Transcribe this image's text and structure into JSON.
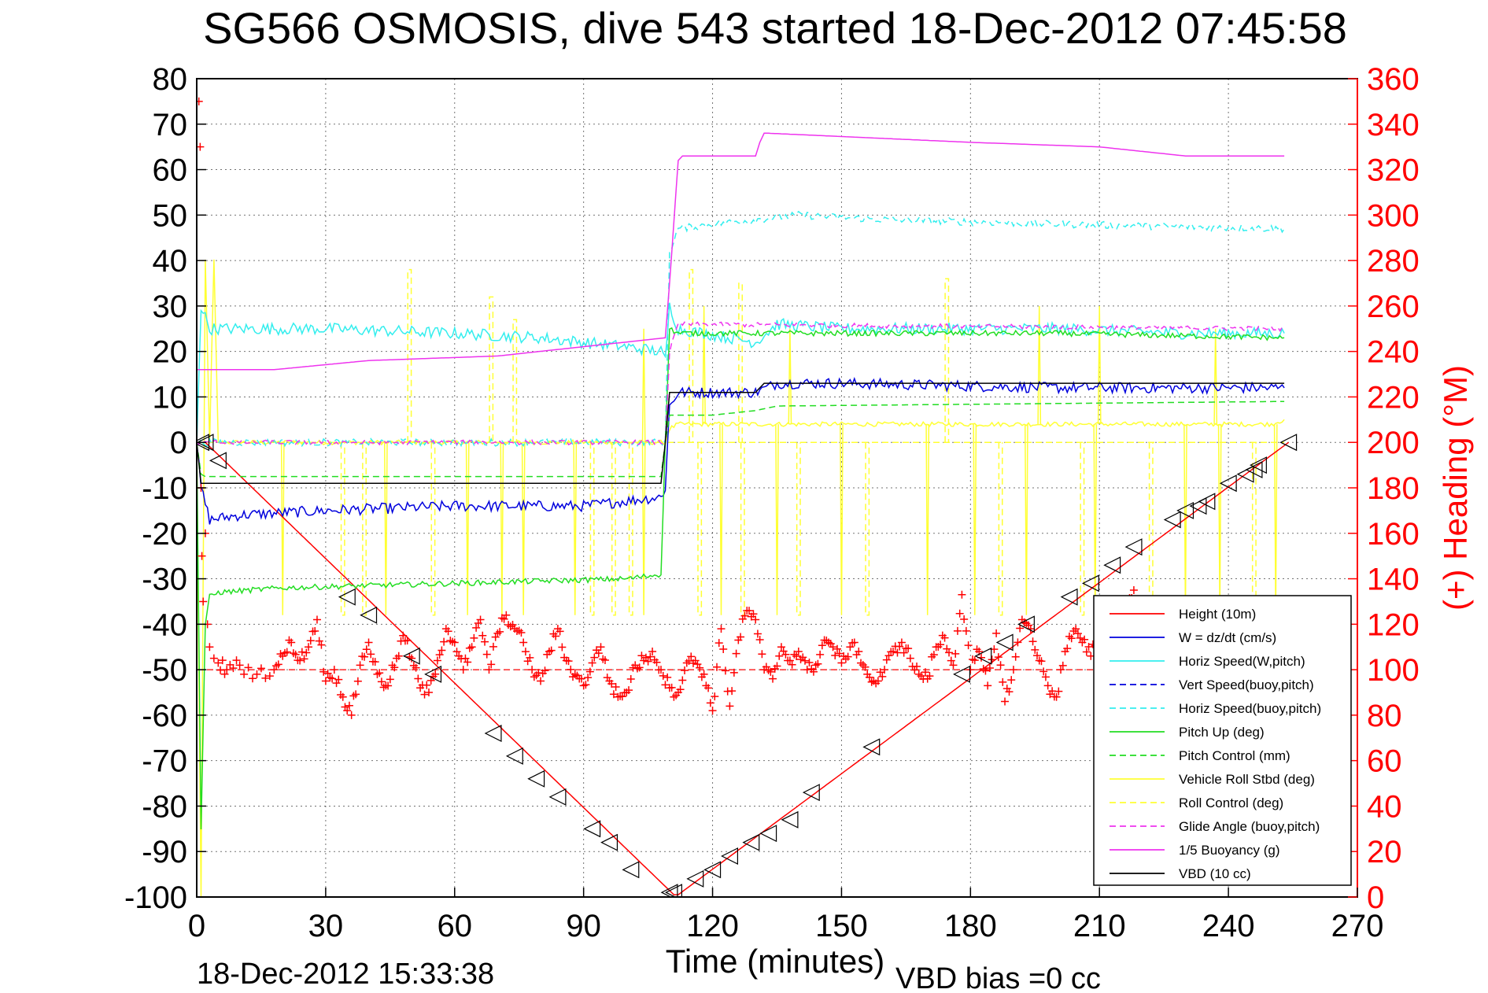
{
  "chart_data": {
    "type": "line",
    "title": "SG566 OSMOSIS, dive 543 started 18-Dec-2012 07:45:58",
    "xlabel": "Time (minutes)",
    "ylabel": "",
    "y2label": "(+) Heading (°M)",
    "footer_left": "18-Dec-2012 15:33:38",
    "footer_right": "VBD bias =0 cc",
    "xlim": [
      0,
      270
    ],
    "ylim": [
      -100,
      80
    ],
    "y2lim": [
      0,
      360
    ],
    "xticks": [
      0,
      30,
      60,
      90,
      120,
      150,
      180,
      210,
      240,
      270
    ],
    "yticks": [
      80,
      70,
      60,
      50,
      40,
      30,
      20,
      10,
      0,
      -10,
      -20,
      -30,
      -40,
      -50,
      -60,
      -70,
      -80,
      -90,
      -100
    ],
    "y2ticks": [
      360,
      340,
      320,
      300,
      280,
      260,
      240,
      220,
      200,
      180,
      160,
      140,
      120,
      100,
      80,
      60,
      40,
      20,
      0
    ],
    "grid": true,
    "legend_position": "bottom-right",
    "colors": {
      "axis": "#000000",
      "right_axis": "#ff0000",
      "grid": "#000000",
      "red": "#ff0000",
      "blue": "#0000dd",
      "cyan": "#33eeee",
      "green": "#22dd22",
      "yellow": "#ffff33",
      "magenta": "#ee33ee",
      "black": "#000000"
    },
    "legend": [
      {
        "label": "Height (10m)",
        "color": "#ff0000",
        "dash": false
      },
      {
        "label": "W = dz/dt (cm/s)",
        "color": "#0000dd",
        "dash": false
      },
      {
        "label": "Horiz Speed(W,pitch)",
        "color": "#33eeee",
        "dash": false
      },
      {
        "label": "Vert Speed(buoy,pitch)",
        "color": "#0000dd",
        "dash": true
      },
      {
        "label": "Horiz Speed(buoy,pitch)",
        "color": "#33eeee",
        "dash": true
      },
      {
        "label": "Pitch Up (deg)",
        "color": "#22dd22",
        "dash": false
      },
      {
        "label": "Pitch Control (mm)",
        "color": "#22dd22",
        "dash": true
      },
      {
        "label": "Vehicle Roll Stbd (deg)",
        "color": "#ffff33",
        "dash": false
      },
      {
        "label": "Roll Control (deg)",
        "color": "#ffff33",
        "dash": true
      },
      {
        "label": "Glide Angle (buoy,pitch)",
        "color": "#ee33ee",
        "dash": true
      },
      {
        "label": "1/5 Buoyancy (g)",
        "color": "#ee33ee",
        "dash": false
      },
      {
        "label": "VBD (10 cc)",
        "color": "#000000",
        "dash": false
      }
    ],
    "series": [
      {
        "name": "Height (10m)",
        "color": "#ff0000",
        "style": "solid",
        "x": [
          0,
          2,
          111,
          112,
          254
        ],
        "y": [
          0,
          0,
          -99.5,
          -99.5,
          0
        ]
      },
      {
        "name": "W = dz/dt (cm/s)",
        "color": "#0000dd",
        "style": "solid",
        "noise": 1.2,
        "x": [
          0,
          1,
          3,
          10,
          30,
          60,
          90,
          108,
          109,
          110,
          112,
          130,
          135,
          150,
          200,
          210,
          230,
          253
        ],
        "y": [
          0,
          -10,
          -17,
          -16,
          -15,
          -14,
          -14,
          -12,
          -10,
          8,
          11,
          11,
          13,
          13,
          12,
          12,
          12,
          12
        ]
      },
      {
        "name": "Horiz Speed(W,pitch)",
        "color": "#33eeee",
        "style": "solid",
        "noise": 1.3,
        "x": [
          0,
          1,
          3,
          30,
          60,
          80,
          100,
          108,
          109,
          110,
          112,
          130,
          135,
          150,
          200,
          230,
          253
        ],
        "y": [
          0,
          30,
          25,
          25,
          24,
          23,
          21,
          20,
          18,
          30,
          25,
          22,
          26,
          25,
          25,
          24,
          24
        ]
      },
      {
        "name": "Horiz Speed(buoy,pitch)",
        "color": "#33eeee",
        "style": "dashed",
        "noise": 0.8,
        "x": [
          0,
          109,
          110,
          112,
          120,
          140,
          160,
          200,
          253
        ],
        "y": [
          0,
          0,
          42,
          47,
          48,
          50,
          49,
          48,
          47
        ]
      },
      {
        "name": "Pitch Up (deg)",
        "color": "#22dd22",
        "style": "solid",
        "noise": 0.6,
        "x": [
          0,
          1,
          2,
          3,
          5,
          20,
          60,
          100,
          108,
          109,
          110,
          112,
          130,
          150,
          200,
          253
        ],
        "y": [
          0,
          -85,
          -40,
          -34,
          -33,
          -32,
          -31,
          -30,
          -29,
          0,
          25,
          24,
          24,
          24,
          24,
          23
        ]
      },
      {
        "name": "Pitch Control (mm)",
        "color": "#22dd22",
        "style": "dashed",
        "noise": 0,
        "x": [
          0,
          1,
          2,
          108,
          109,
          110,
          120,
          130,
          135,
          253
        ],
        "y": [
          0,
          -7,
          -7.5,
          -7.5,
          0,
          6,
          6,
          7,
          8,
          9
        ]
      },
      {
        "name": "1/5 Buoyancy (g)",
        "color": "#ee33ee",
        "style": "solid",
        "noise": 0,
        "x": [
          0,
          2,
          18,
          40,
          70,
          109,
          110,
          112,
          113,
          120,
          130,
          131,
          132,
          133,
          180,
          210,
          230,
          253
        ],
        "y": [
          16,
          16,
          16,
          18,
          19,
          23,
          35,
          62,
          63,
          63,
          63,
          66,
          68,
          68,
          66,
          65,
          63,
          63
        ]
      },
      {
        "name": "Glide Angle (buoy,pitch)",
        "color": "#ee33ee",
        "style": "dashed",
        "noise": 0.5,
        "x": [
          0,
          109,
          110,
          112,
          253
        ],
        "y": [
          0,
          0,
          20,
          26,
          25
        ]
      },
      {
        "name": "VBD (10 cc)",
        "color": "#000000",
        "style": "solid",
        "noise": 0,
        "x": [
          0,
          1,
          2,
          108,
          109,
          110,
          111,
          130,
          132,
          134,
          253
        ],
        "y": [
          0,
          -9,
          -9,
          -9,
          0,
          11,
          11,
          11,
          13,
          13,
          13
        ]
      }
    ],
    "roll_control": {
      "name": "Roll Control (deg)",
      "color": "#ffff33",
      "style": "dashed",
      "baseline": 0,
      "spikes_up": [
        {
          "x": 49.5,
          "y": 38
        },
        {
          "x": 68.5,
          "y": 32
        },
        {
          "x": 74,
          "y": 27
        },
        {
          "x": 115,
          "y": 38
        },
        {
          "x": 126.5,
          "y": 35
        },
        {
          "x": 174.5,
          "y": 36
        }
      ],
      "spikes_down": [
        {
          "x": 34,
          "y": -38
        },
        {
          "x": 39,
          "y": -38
        },
        {
          "x": 55,
          "y": -38
        },
        {
          "x": 92,
          "y": -38
        },
        {
          "x": 97,
          "y": -38
        },
        {
          "x": 101,
          "y": -38
        },
        {
          "x": 117,
          "y": -38
        },
        {
          "x": 127,
          "y": -38
        },
        {
          "x": 140,
          "y": -38
        },
        {
          "x": 156,
          "y": -38
        },
        {
          "x": 187,
          "y": -38
        },
        {
          "x": 206,
          "y": -38
        },
        {
          "x": 222,
          "y": -38
        },
        {
          "x": 246,
          "y": -38
        }
      ]
    },
    "vehicle_roll": {
      "name": "Vehicle Roll Stbd (deg)",
      "color": "#ffff33",
      "style": "solid",
      "x": [
        0,
        1,
        2,
        3,
        4,
        5,
        6,
        108,
        109,
        110,
        112,
        140,
        200,
        250,
        253
      ],
      "y": [
        0,
        -100,
        40,
        0,
        40,
        0,
        0,
        0,
        0,
        3,
        4,
        4,
        4,
        4,
        5
      ],
      "spikes_up": [
        {
          "x": 104,
          "y": 25
        },
        {
          "x": 118,
          "y": 30
        },
        {
          "x": 138,
          "y": 25
        },
        {
          "x": 196,
          "y": 30
        },
        {
          "x": 210,
          "y": 30
        },
        {
          "x": 237,
          "y": 25
        }
      ],
      "spikes_down": [
        {
          "x": 20,
          "y": -38
        },
        {
          "x": 44,
          "y": -38
        },
        {
          "x": 63,
          "y": -38
        },
        {
          "x": 71,
          "y": -38
        },
        {
          "x": 76,
          "y": -38
        },
        {
          "x": 88,
          "y": -38
        },
        {
          "x": 104,
          "y": -38
        },
        {
          "x": 122,
          "y": -38
        },
        {
          "x": 135,
          "y": -38
        },
        {
          "x": 150,
          "y": -38
        },
        {
          "x": 170,
          "y": -38
        },
        {
          "x": 181,
          "y": -38
        },
        {
          "x": 193,
          "y": -38
        },
        {
          "x": 209,
          "y": -38
        },
        {
          "x": 230,
          "y": -38
        },
        {
          "x": 238,
          "y": -38
        },
        {
          "x": 251,
          "y": -38
        }
      ]
    },
    "heading": {
      "name": "(+) Heading (°M)",
      "color": "#ff0000",
      "marker": "+",
      "axis": "right",
      "target": 100,
      "x": [
        0.5,
        0.8,
        1,
        1.2,
        1.5,
        2,
        2.5,
        3,
        4,
        5,
        7,
        10,
        14,
        18,
        20,
        22,
        24,
        26,
        28,
        30,
        32,
        34,
        36,
        38,
        40,
        42,
        44,
        46,
        48,
        50,
        52,
        54,
        56,
        58,
        60,
        62,
        64,
        66,
        68,
        70,
        72,
        74,
        76,
        78,
        80,
        82,
        84,
        86,
        88,
        90,
        92,
        94,
        96,
        98,
        100,
        102,
        104,
        106,
        108,
        110,
        112,
        114,
        116,
        118,
        120,
        122,
        124,
        126,
        128,
        130,
        132,
        134,
        136,
        138,
        140,
        142,
        144,
        146,
        148,
        150,
        152,
        154,
        156,
        158,
        160,
        162,
        164,
        166,
        168,
        170,
        172,
        174,
        176,
        178,
        180,
        182,
        184,
        186,
        188,
        190,
        192,
        194,
        196,
        198,
        200,
        202,
        204,
        206,
        208,
        210,
        212,
        214,
        216,
        218
      ],
      "y": [
        350,
        330,
        180,
        150,
        130,
        160,
        120,
        110,
        105,
        103,
        100,
        102,
        98,
        100,
        106,
        112,
        104,
        110,
        122,
        95,
        100,
        88,
        80,
        102,
        112,
        98,
        93,
        101,
        115,
        105,
        92,
        90,
        104,
        118,
        112,
        100,
        110,
        122,
        100,
        116,
        124,
        118,
        112,
        100,
        95,
        108,
        118,
        104,
        98,
        93,
        103,
        110,
        95,
        88,
        90,
        102,
        104,
        108,
        100,
        92,
        90,
        103,
        104,
        98,
        82,
        118,
        84,
        113,
        126,
        122,
        100,
        96,
        110,
        104,
        108,
        100,
        102,
        113,
        110,
        103,
        110,
        108,
        98,
        94,
        100,
        108,
        112,
        105,
        98,
        96,
        110,
        114,
        102,
        133,
        100,
        108,
        93,
        116,
        86,
        100,
        122,
        118,
        104,
        93,
        88,
        108,
        117,
        112,
        106,
        118,
        123,
        125,
        126,
        135
      ]
    },
    "markers": {
      "color": "#000000",
      "shape": "triangle",
      "x": [
        1,
        2,
        5,
        35,
        40,
        50,
        55,
        69,
        74,
        79,
        84,
        92,
        96,
        101,
        110,
        111,
        116,
        120,
        124,
        129,
        133,
        138,
        143,
        157,
        178,
        183,
        188,
        193,
        203,
        208,
        213,
        218,
        227,
        230,
        233,
        235,
        240,
        244,
        246,
        247,
        254
      ],
      "y": [
        0,
        0,
        -4,
        -34,
        -38,
        -47,
        -51,
        -64,
        -69,
        -74,
        -78,
        -85,
        -88,
        -94,
        -99,
        -99,
        -96,
        -94,
        -91,
        -88,
        -86,
        -83,
        -77,
        -67,
        -51,
        -47,
        -44,
        -40,
        -34,
        -31,
        -27,
        -23,
        -17,
        -15,
        -14,
        -13,
        -9,
        -7,
        -6,
        -5,
        0
      ]
    }
  }
}
